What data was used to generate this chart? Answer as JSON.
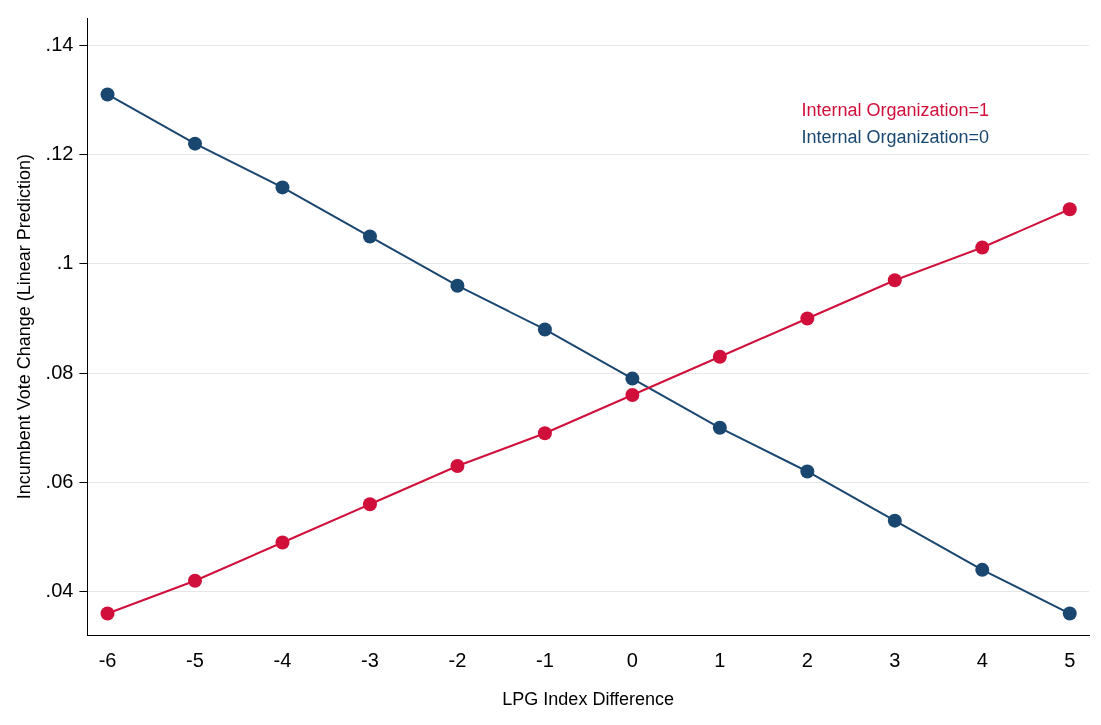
{
  "chart_data": {
    "type": "line",
    "xlabel": "LPG Index Difference",
    "ylabel": "Incumbent Vote Change (Linear Prediction)",
    "x": [
      -6,
      -5,
      -4,
      -3,
      -2,
      -1,
      0,
      1,
      2,
      3,
      4,
      5
    ],
    "series": [
      {
        "name": "Internal Organization=1",
        "color": "#d0103a",
        "values": [
          0.036,
          0.042,
          0.049,
          0.056,
          0.063,
          0.069,
          0.076,
          0.083,
          0.09,
          0.097,
          0.103,
          0.11
        ]
      },
      {
        "name": "Internal Organization=0",
        "color": "#1a476f",
        "values": [
          0.131,
          0.122,
          0.114,
          0.105,
          0.096,
          0.088,
          0.079,
          0.07,
          0.062,
          0.053,
          0.044,
          0.036
        ]
      }
    ],
    "xlim": [
      -6.23,
      5.22
    ],
    "xticks": [
      -6,
      -5,
      -4,
      -3,
      -2,
      -1,
      0,
      1,
      2,
      3,
      4,
      5
    ],
    "ylim": [
      0.032,
      0.145
    ],
    "yticks": [
      {
        "value": 0.04,
        "label": ".04"
      },
      {
        "value": 0.06,
        "label": ".06"
      },
      {
        "value": 0.08,
        "label": ".08"
      },
      {
        "value": 0.1,
        "label": ".1"
      },
      {
        "value": 0.12,
        "label": ".12"
      },
      {
        "value": 0.14,
        "label": ".14"
      }
    ],
    "grid": "y",
    "legend": "top right",
    "marker": "circle",
    "line_style": "solid"
  }
}
